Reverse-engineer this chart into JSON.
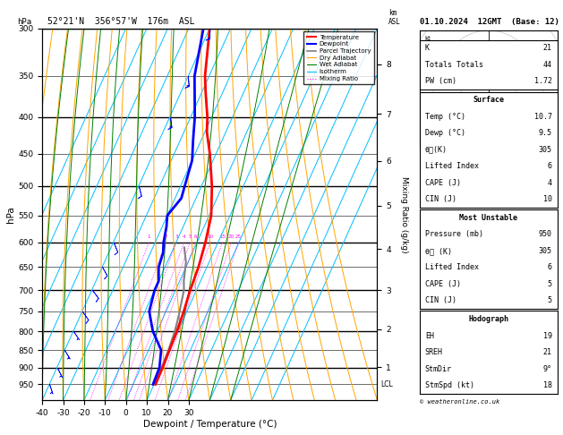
{
  "title_left": "52°21'N  356°57'W  176m  ASL",
  "title_right": "01.10.2024  12GMT  (Base: 12)",
  "xlabel": "Dewpoint / Temperature (°C)",
  "ylabel_left": "hPa",
  "ylabel_right_mixing": "Mixing Ratio (g/kg)",
  "pressure_levels": [
    300,
    350,
    400,
    450,
    500,
    550,
    600,
    650,
    700,
    750,
    800,
    850,
    900,
    950
  ],
  "pressure_major": [
    300,
    400,
    500,
    600,
    700,
    800,
    900
  ],
  "pmin": 300,
  "pmax": 1000,
  "tmin": -40,
  "tmax": 40,
  "skew": 1.0,
  "temp_profile_p": [
    300,
    350,
    370,
    400,
    420,
    450,
    500,
    550,
    600,
    650,
    700,
    750,
    800,
    850,
    900,
    950
  ],
  "temp_profile_t": [
    -40,
    -32,
    -28,
    -22,
    -19,
    -13,
    -5,
    1,
    4,
    6,
    7,
    8.5,
    9.5,
    10.0,
    10.5,
    10.7
  ],
  "dewp_profile_p": [
    300,
    350,
    400,
    430,
    460,
    500,
    520,
    550,
    570,
    600,
    620,
    650,
    680,
    700,
    750,
    800,
    850,
    900,
    950
  ],
  "dewp_profile_t": [
    -43,
    -37,
    -28,
    -24,
    -20,
    -18,
    -17,
    -20,
    -18,
    -16,
    -14,
    -13,
    -10,
    -10,
    -8,
    -2,
    6,
    9,
    9.5
  ],
  "parcel_profile_p": [
    610,
    640,
    680,
    700,
    730,
    760,
    800,
    850,
    900,
    950
  ],
  "parcel_profile_t": [
    -5,
    -1,
    2,
    4,
    5.5,
    7,
    8.5,
    9.5,
    10.0,
    10.7
  ],
  "mixing_ratio_values": [
    1,
    2,
    3,
    4,
    5,
    6,
    10,
    15,
    20,
    25
  ],
  "km_asl_ticks": [
    1,
    2,
    3,
    4,
    5,
    6,
    7,
    8
  ],
  "km_asl_pressures": [
    899,
    795,
    700,
    613,
    533,
    461,
    396,
    337
  ],
  "color_temp": "#FF0000",
  "color_dewp": "#0000FF",
  "color_parcel": "#808080",
  "color_dry_adiabat": "#FFA500",
  "color_wet_adiabat": "#008000",
  "color_isotherm": "#00BFFF",
  "color_mixing": "#FF00FF",
  "info_K": 21,
  "info_TT": 44,
  "info_PW": 1.72,
  "surf_temp": 10.7,
  "surf_dewp": 9.5,
  "surf_theta_e": 305,
  "surf_LI": 6,
  "surf_CAPE": 4,
  "surf_CIN": 10,
  "mu_pressure": 950,
  "mu_theta_e": 305,
  "mu_LI": 6,
  "mu_CAPE": 5,
  "mu_CIN": 5,
  "hodo_EH": 19,
  "hodo_SREH": 21,
  "hodo_StmDir": "9°",
  "hodo_StmSpd": 18,
  "wind_p": [
    950,
    900,
    850,
    800,
    750,
    700,
    650,
    600,
    500,
    400,
    350,
    300
  ],
  "wind_u": [
    -1,
    -2,
    -3,
    -4,
    -5,
    -6,
    -5,
    -4,
    -3,
    -2,
    -1,
    0
  ],
  "wind_v": [
    3,
    4,
    5,
    6,
    7,
    8,
    9,
    10,
    12,
    14,
    15,
    16
  ]
}
